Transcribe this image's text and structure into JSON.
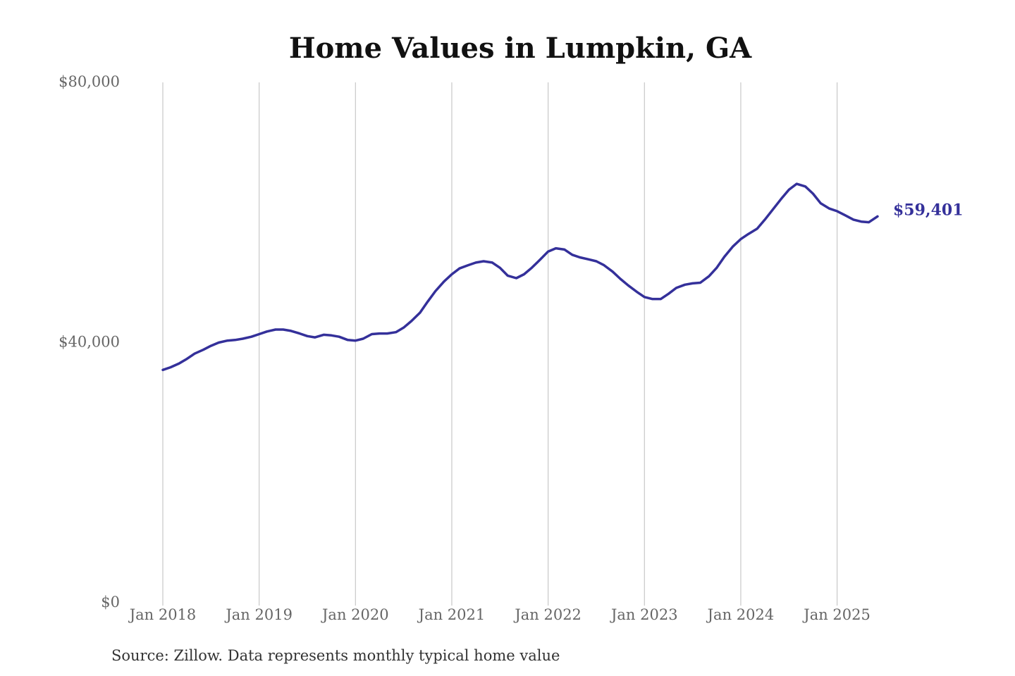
{
  "chart_data": {
    "type": "line",
    "title": "Home Values in Lumpkin, GA",
    "xlabel": "",
    "ylabel": "",
    "ylim": [
      0,
      80000
    ],
    "yticks": [
      {
        "value": 0,
        "label": "$0"
      },
      {
        "value": 40000,
        "label": "$40,000"
      },
      {
        "value": 80000,
        "label": "$80,000"
      }
    ],
    "xticks": [
      {
        "value": 2018.0,
        "label": "Jan 2018"
      },
      {
        "value": 2019.0,
        "label": "Jan 2019"
      },
      {
        "value": 2020.0,
        "label": "Jan 2020"
      },
      {
        "value": 2021.0,
        "label": "Jan 2021"
      },
      {
        "value": 2022.0,
        "label": "Jan 2022"
      },
      {
        "value": 2023.0,
        "label": "Jan 2023"
      },
      {
        "value": 2024.0,
        "label": "Jan 2024"
      },
      {
        "value": 2025.0,
        "label": "Jan 2025"
      }
    ],
    "xlim": [
      2018.0,
      2025.42
    ],
    "grid": "vertical",
    "legend": "none",
    "series": [
      {
        "color": "#34309a",
        "end_label": "$59,401",
        "x": [
          2018.0,
          2018.08,
          2018.17,
          2018.25,
          2018.33,
          2018.42,
          2018.5,
          2018.58,
          2018.67,
          2018.75,
          2018.83,
          2018.92,
          2019.0,
          2019.08,
          2019.17,
          2019.25,
          2019.33,
          2019.42,
          2019.5,
          2019.58,
          2019.67,
          2019.75,
          2019.83,
          2019.92,
          2020.0,
          2020.08,
          2020.17,
          2020.25,
          2020.33,
          2020.42,
          2020.5,
          2020.58,
          2020.67,
          2020.75,
          2020.83,
          2020.92,
          2021.0,
          2021.08,
          2021.17,
          2021.25,
          2021.33,
          2021.42,
          2021.5,
          2021.58,
          2021.67,
          2021.75,
          2021.83,
          2021.92,
          2022.0,
          2022.08,
          2022.17,
          2022.25,
          2022.33,
          2022.42,
          2022.5,
          2022.58,
          2022.67,
          2022.75,
          2022.83,
          2022.92,
          2023.0,
          2023.08,
          2023.17,
          2023.25,
          2023.33,
          2023.42,
          2023.5,
          2023.58,
          2023.67,
          2023.75,
          2023.83,
          2023.92,
          2024.0,
          2024.08,
          2024.17,
          2024.25,
          2024.33,
          2024.42,
          2024.5,
          2024.58,
          2024.67,
          2024.75,
          2024.83,
          2024.92,
          2025.0,
          2025.08,
          2025.17,
          2025.25,
          2025.33,
          2025.42
        ],
        "values": [
          35800,
          36200,
          36800,
          37500,
          38300,
          38900,
          39500,
          40000,
          40300,
          40400,
          40600,
          40900,
          41300,
          41700,
          42000,
          42000,
          41800,
          41400,
          41000,
          40800,
          41200,
          41100,
          40900,
          40400,
          40300,
          40600,
          41300,
          41400,
          41400,
          41600,
          42300,
          43300,
          44600,
          46300,
          47900,
          49400,
          50500,
          51400,
          51900,
          52300,
          52500,
          52300,
          51500,
          50300,
          49900,
          50500,
          51500,
          52800,
          54000,
          54500,
          54300,
          53500,
          53100,
          52800,
          52500,
          51900,
          50900,
          49800,
          48800,
          47800,
          47000,
          46700,
          46700,
          47500,
          48400,
          48900,
          49100,
          49200,
          50200,
          51500,
          53200,
          54800,
          55900,
          56700,
          57500,
          58900,
          60400,
          62100,
          63500,
          64400,
          64000,
          62900,
          61400,
          60600,
          60200,
          59600,
          58900,
          58600,
          58500,
          59401
        ]
      }
    ]
  },
  "source_note": "Source: Zillow. Data represents monthly typical home value"
}
